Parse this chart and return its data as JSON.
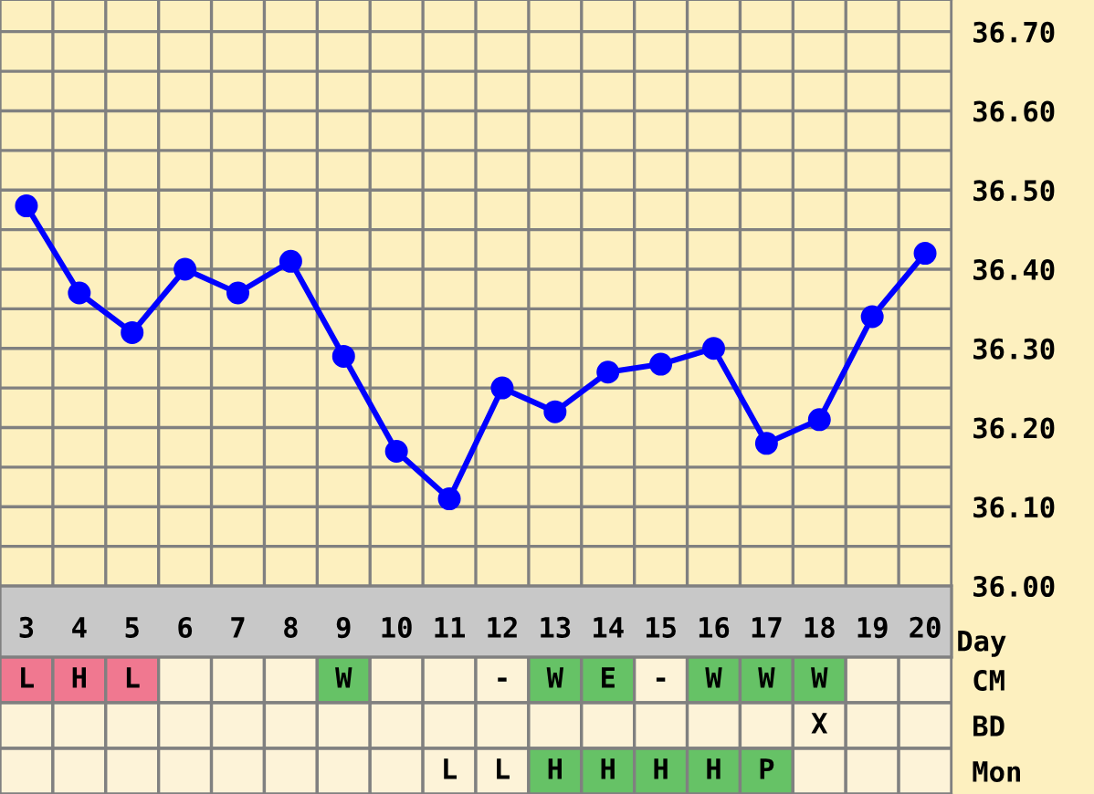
{
  "chart_data": [
    {
      "type": "line",
      "xlabel": "Day",
      "categories": [
        "3",
        "4",
        "5",
        "6",
        "7",
        "8",
        "9",
        "10",
        "11",
        "12",
        "13",
        "14",
        "15",
        "16",
        "17",
        "18",
        "19",
        "20"
      ],
      "series": [
        {
          "color": "#0000ff",
          "values": [
            36.48,
            36.37,
            36.32,
            36.4,
            36.37,
            36.41,
            36.29,
            36.17,
            36.11,
            36.25,
            36.22,
            36.27,
            36.28,
            36.3,
            36.18,
            36.21,
            36.34,
            36.42
          ]
        }
      ],
      "marker": "circle",
      "line_style": "solid",
      "grid": true,
      "ylim": [
        36.0,
        36.74
      ],
      "yticks": [
        {
          "value": 36.0,
          "label": "36.00"
        },
        {
          "value": 36.05,
          "label": null
        },
        {
          "value": 36.1,
          "label": "36.10"
        },
        {
          "value": 36.15,
          "label": null
        },
        {
          "value": 36.2,
          "label": "36.20"
        },
        {
          "value": 36.25,
          "label": null
        },
        {
          "value": 36.3,
          "label": "36.30"
        },
        {
          "value": 36.35,
          "label": null
        },
        {
          "value": 36.4,
          "label": "36.40"
        },
        {
          "value": 36.45,
          "label": null
        },
        {
          "value": 36.5,
          "label": "36.50"
        },
        {
          "value": 36.55,
          "label": null
        },
        {
          "value": 36.6,
          "label": "36.60"
        },
        {
          "value": 36.65,
          "label": null
        },
        {
          "value": 36.7,
          "label": "36.70"
        }
      ]
    },
    {
      "type": "other",
      "y2_categories": [
        "CM",
        "BD",
        "Mon"
      ],
      "cell_labels": [
        [
          "L",
          "H",
          "L",
          null,
          null,
          null,
          "W",
          null,
          null,
          "-",
          "W",
          "E",
          "-",
          "W",
          "W",
          "W",
          null,
          null
        ],
        [
          null,
          null,
          null,
          null,
          null,
          null,
          null,
          null,
          null,
          null,
          null,
          null,
          null,
          null,
          null,
          "X",
          null,
          null
        ],
        [
          null,
          null,
          null,
          null,
          null,
          null,
          null,
          null,
          "L",
          "L",
          "H",
          "H",
          "H",
          "H",
          "P",
          null,
          null,
          null
        ]
      ],
      "colors": [
        [
          "#f07890",
          "#f07890",
          "#f07890",
          "#fdf3d8",
          "#fdf3d8",
          "#fdf3d8",
          "#66c266",
          "#fdf3d8",
          "#fdf3d8",
          "#fdf3d8",
          "#66c266",
          "#66c266",
          "#fdf3d8",
          "#66c266",
          "#66c266",
          "#66c266",
          "#fdf3d8",
          "#fdf3d8"
        ],
        [
          "#fdf3d8",
          "#fdf3d8",
          "#fdf3d8",
          "#fdf3d8",
          "#fdf3d8",
          "#fdf3d8",
          "#fdf3d8",
          "#fdf3d8",
          "#fdf3d8",
          "#fdf3d8",
          "#fdf3d8",
          "#fdf3d8",
          "#fdf3d8",
          "#fdf3d8",
          "#fdf3d8",
          "#fdf3d8",
          "#fdf3d8",
          "#fdf3d8"
        ],
        [
          "#fdf3d8",
          "#fdf3d8",
          "#fdf3d8",
          "#fdf3d8",
          "#fdf3d8",
          "#fdf3d8",
          "#fdf3d8",
          "#fdf3d8",
          "#fdf3d8",
          "#fdf3d8",
          "#66c266",
          "#66c266",
          "#66c266",
          "#66c266",
          "#66c266",
          "#fdf3d8",
          "#fdf3d8",
          "#fdf3d8"
        ]
      ]
    }
  ]
}
